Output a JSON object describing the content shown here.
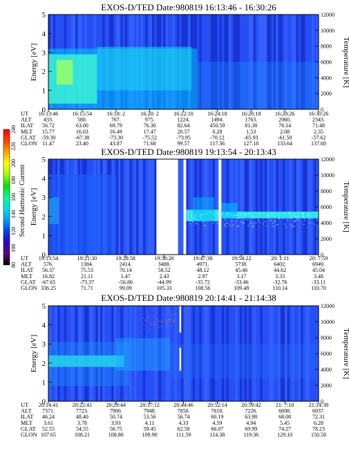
{
  "colorbar": {
    "label": "Second Harmonic Current",
    "ticks": [
      80,
      100,
      120,
      140,
      160,
      180,
      200,
      220,
      240
    ],
    "range": [
      80,
      240
    ],
    "colors": [
      "#000000",
      "#5b0a7a",
      "#2c00c8",
      "#0040ff",
      "#00a0ff",
      "#00e0e0",
      "#00ff90",
      "#00e000",
      "#a0ff00",
      "#ffff00",
      "#ffa000",
      "#ff4000",
      "#ff0000"
    ]
  },
  "chart_data": [
    {
      "type": "heatmap",
      "title": "EXOS-D/TED   Date:980819   16:13:46 - 16:30:26",
      "ylabel": "Energy [eV]",
      "y2label": "Temperature [K]",
      "ylim": [
        0,
        5
      ],
      "y2lim": [
        0,
        12000
      ],
      "yticks": [
        0,
        1,
        2,
        3,
        4,
        5
      ],
      "y2ticks": [
        0,
        2000,
        4000,
        6000,
        8000,
        10000,
        12000
      ],
      "background": "#1e3ef2",
      "gaps": [],
      "orbit_table": {
        "row_labels": [
          "UT",
          "ALT",
          "ILAT",
          "MLT",
          "GLAT",
          "GLON"
        ],
        "columns": [
          [
            "16:13:46",
            "433.",
            "56.72",
            "15.77",
            "-59.30",
            "11.47"
          ],
          [
            "16:15:54",
            "580.",
            "63.00",
            "16.03",
            "-67.38",
            "23.40"
          ],
          [
            "16:18: 2",
            "767.",
            "69.79",
            "16.49",
            "-73.30",
            "43.87"
          ],
          [
            "16:20: 2",
            "975.",
            "76.30",
            "17.47",
            "-75.52",
            "71.68"
          ],
          [
            "16:22:10",
            "1224.",
            "82.64",
            "20.57",
            "-73.95",
            "99.57"
          ],
          [
            "16:24:18",
            "1494.",
            "450.59",
            "0.28",
            "-70.12",
            "117.36"
          ],
          [
            "16:26:18",
            "1763.",
            "81.38",
            "1.53",
            "-65.93",
            "127.18"
          ],
          [
            "16:28:26",
            "2060.",
            "76.14",
            "2.08",
            "-61.50",
            "133.64"
          ],
          [
            "16:30:26",
            "2343.",
            "71.48",
            "2.35",
            "-57.62",
            "137.60"
          ]
        ]
      }
    },
    {
      "type": "heatmap",
      "title": "EXOS-D/TED   Date:980819   19:13:54 - 20:13:43",
      "ylabel": "Energy [eV]",
      "y2label": "Temperature [K]",
      "ylim": [
        0,
        5
      ],
      "y2lim": [
        0,
        12000
      ],
      "yticks": [
        0,
        1,
        2,
        3,
        4,
        5
      ],
      "y2ticks": [
        0,
        2000,
        4000,
        6000,
        8000,
        10000,
        12000
      ],
      "background": "#1e3ef2",
      "gaps": [
        [
          0.4,
          0.48
        ],
        [
          0.5,
          0.51
        ],
        [
          0.63,
          0.64
        ]
      ],
      "orbit_table": {
        "row_labels": [
          "UT",
          "ALT",
          "ILAT",
          "MLT",
          "GLAT",
          "GLON"
        ],
        "columns": [
          [
            "19:13:54",
            "576.",
            "56.37",
            "16.82",
            "-67.65",
            "336.25"
          ],
          [
            "19:21:30",
            "1384.",
            "75.53",
            "21.11",
            "-73.37",
            "71.71"
          ],
          [
            "19:28:58",
            "2414.",
            "70.14",
            "1.47",
            "-56.86",
            "99.09"
          ],
          [
            "19:36:26",
            "3488.",
            "58.52",
            "2.43",
            "-44.99",
            "105.33"
          ],
          [
            "19:47:38",
            "4971.",
            "48.12",
            "2.97",
            "-35.72",
            "108.56"
          ],
          [
            "19:54:22",
            "5738.",
            "45.46",
            "3.17",
            "-33.46",
            "109.48"
          ],
          [
            "20: 1:11",
            "6402.",
            "44.62",
            "3.33",
            "-32.76",
            "110.14"
          ],
          [
            "20: 7:59",
            "6949.",
            "45.04",
            "3.48",
            "-33.11",
            "110.70"
          ]
        ]
      }
    },
    {
      "type": "heatmap",
      "title": "EXOS-D/TED   Date:980819   20:14:41 - 21:14:38",
      "ylabel": "Energy [eV]",
      "y2label": "Temperature [K]",
      "ylim": [
        0,
        5
      ],
      "y2lim": [
        0,
        12000
      ],
      "yticks": [
        0,
        1,
        2,
        3,
        4,
        5
      ],
      "y2ticks": [
        0,
        2000,
        4000,
        6000,
        8000,
        10000,
        12000
      ],
      "background": "#1e3ef2",
      "gaps": [],
      "orbit_table": {
        "row_labels": [
          "UT",
          "ALT",
          "ILAT",
          "MLT",
          "GLAT",
          "GLON"
        ],
        "columns": [
          [
            "20:14:41",
            "7371.",
            "46.24",
            "3.61",
            "52.55",
            "107.65"
          ],
          [
            "20:22:41",
            "7723.",
            "48.40",
            "3.78",
            "54.55",
            "108.21"
          ],
          [
            "20:29:44",
            "7900.",
            "50.74",
            "3.93",
            "56.75",
            "108.86"
          ],
          [
            "20:37:12",
            "7948.",
            "53.56",
            "4.11",
            "59.45",
            "109.90"
          ],
          [
            "20:44:46",
            "7850.",
            "56.74",
            "4.33",
            "62.58",
            "111.59"
          ],
          [
            "20:52:14",
            "7610.",
            "60.19",
            "4.59",
            "66.07",
            "114.38"
          ],
          [
            "20:59:42",
            "7226.",
            "63.98",
            "4.94",
            "69.99",
            "119.36"
          ],
          [
            "21: 7:10",
            "6698.",
            "68.08",
            "5.45",
            "74.27",
            "129.10"
          ],
          [
            "21:14:38",
            "6037.",
            "72.31",
            "6.28",
            "78.23",
            "150.58"
          ]
        ]
      }
    }
  ]
}
